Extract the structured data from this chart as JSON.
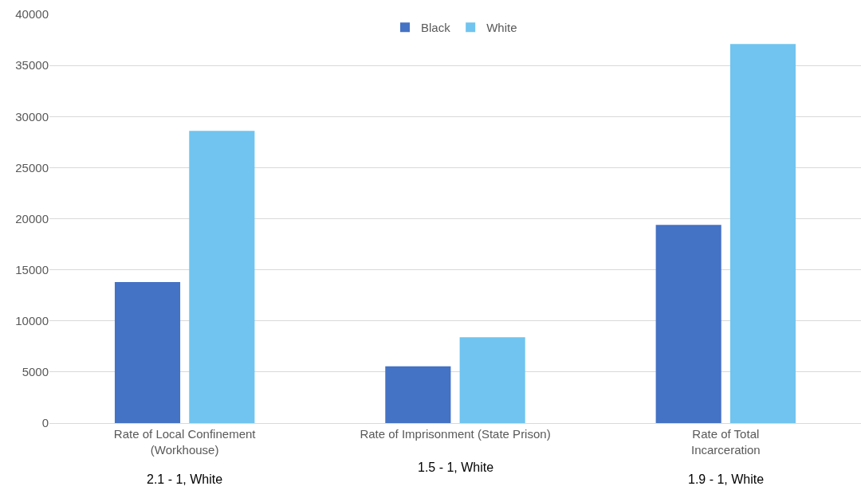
{
  "chart_data": {
    "type": "bar",
    "categories": [
      "Rate of Local Confinement\n(Workhouse)",
      "Rate of Imprisonment (State Prison)",
      "Rate of Total\nIncarceration"
    ],
    "series": [
      {
        "name": "Black",
        "color": "#4472c4",
        "values": [
          13800,
          5550,
          19400
        ]
      },
      {
        "name": "White",
        "color": "#70c4ef",
        "values": [
          28600,
          8400,
          37100
        ]
      }
    ],
    "ylim": [
      0,
      40000
    ],
    "yticks": [
      0,
      5000,
      10000,
      15000,
      20000,
      25000,
      30000,
      35000,
      40000
    ],
    "grid": "y",
    "legend": "top",
    "annotations": [
      "2.1 - 1, White",
      "1.5 - 1, White",
      "1.9 - 1, White"
    ]
  }
}
